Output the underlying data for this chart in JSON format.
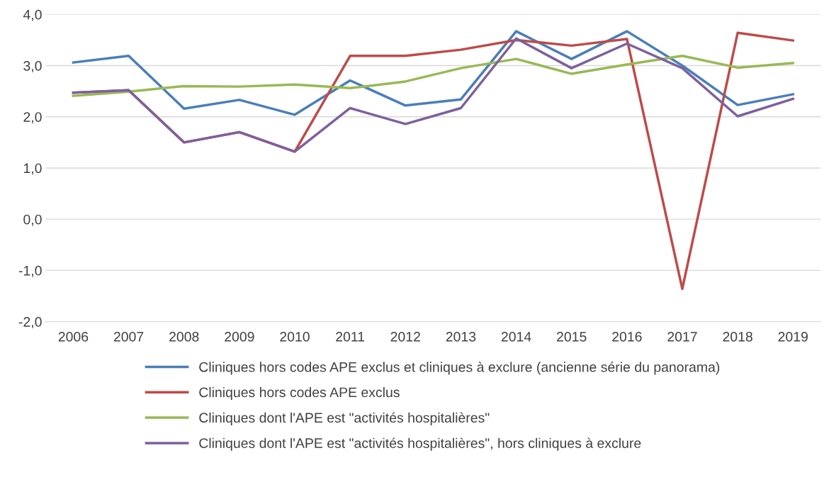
{
  "chart_data": {
    "type": "line",
    "categories": [
      "2006",
      "2007",
      "2008",
      "2009",
      "2010",
      "2011",
      "2012",
      "2013",
      "2014",
      "2015",
      "2016",
      "2017",
      "2018",
      "2019"
    ],
    "series": [
      {
        "name": "Cliniques hors codes APE exclus et cliniques à exclure (ancienne série du panorama)",
        "color": "#4a7ebb",
        "values": [
          3.06,
          3.19,
          2.16,
          2.33,
          2.04,
          2.71,
          2.22,
          2.34,
          3.67,
          3.13,
          3.67,
          3.0,
          2.23,
          2.44
        ]
      },
      {
        "name": "Cliniques hors codes APE exclus",
        "color": "#be4b48",
        "values": [
          2.47,
          2.52,
          1.5,
          1.7,
          1.32,
          3.19,
          3.19,
          3.31,
          3.5,
          3.39,
          3.52,
          -1.36,
          3.64,
          3.49
        ]
      },
      {
        "name": "Cliniques dont l'APE est \"activités hospitalières\"",
        "color": "#98b954",
        "values": [
          2.41,
          2.49,
          2.6,
          2.59,
          2.63,
          2.56,
          2.69,
          2.95,
          3.13,
          2.84,
          3.02,
          3.19,
          2.96,
          3.05
        ]
      },
      {
        "name": "Cliniques dont l'APE est \"activités hospitalières\", hors cliniques à exclure",
        "color": "#7d60a0",
        "values": [
          2.47,
          2.52,
          1.5,
          1.7,
          1.32,
          2.17,
          1.86,
          2.17,
          3.53,
          2.95,
          3.43,
          2.95,
          2.01,
          2.35
        ]
      }
    ],
    "ylim": [
      -2,
      4
    ],
    "yticks": [
      {
        "value": -2,
        "label": "-2,0"
      },
      {
        "value": -1,
        "label": "-1,0"
      },
      {
        "value": 0,
        "label": "0,0"
      },
      {
        "value": 1,
        "label": "1,0"
      },
      {
        "value": 2,
        "label": "2,0"
      },
      {
        "value": 3,
        "label": "3,0"
      },
      {
        "value": 4,
        "label": "4,0"
      }
    ],
    "grid": "y",
    "legend": "bottom",
    "marker": "none",
    "line_style": "solid"
  }
}
